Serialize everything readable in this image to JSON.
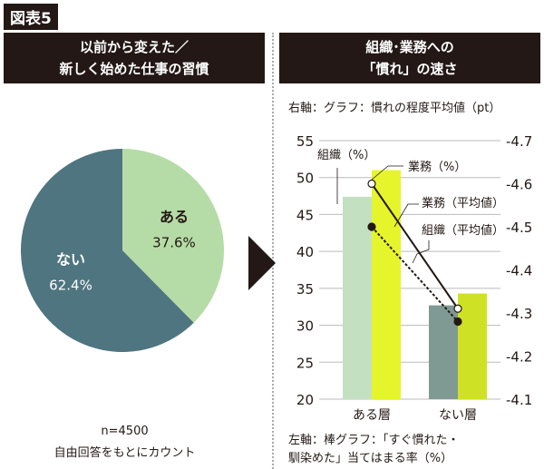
{
  "figure_label": "図表5",
  "left": {
    "title_line1": "以前から変えた／",
    "title_line2": "新しく始めた仕事の習慣",
    "note_n": "n=4500",
    "note_method": "自由回答をもとにカウント"
  },
  "right": {
    "title_line1": "組織･業務への",
    "title_line2": "「慣れ」の速さ",
    "right_axis_note": "右軸：グラフ：慣れの程度平均値（pt）",
    "left_axis_note_line1": "左軸：棒グラフ：「すぐ慣れた・",
    "left_axis_note_line2": "馴染めた」当てはまる率（%）"
  },
  "chart_data": [
    {
      "type": "pie",
      "slices": [
        {
          "label": "ある",
          "value": 37.6,
          "display": "37.6%",
          "color": "#b5dca6"
        },
        {
          "label": "ない",
          "value": 62.4,
          "display": "62.4%",
          "color": "#4e7580"
        }
      ]
    },
    {
      "type": "bar+line",
      "categories": [
        "ある層",
        "ない層"
      ],
      "left_axis": {
        "ylim": [
          20,
          55
        ],
        "ticks": [
          "20",
          "25",
          "30",
          "35",
          "40",
          "45",
          "50",
          "55"
        ]
      },
      "right_axis": {
        "ylim": [
          4.1,
          4.7
        ],
        "ticks": [
          "4.1",
          "4.2",
          "4.3",
          "4.4",
          "4.5",
          "4.6",
          "4.7"
        ]
      },
      "bar_series": [
        {
          "name": "組織（%）",
          "values": [
            47.4,
            32.7
          ],
          "colors": [
            "#c3e1c0",
            "#7f9a93"
          ]
        },
        {
          "name": "業務（%）",
          "values": [
            51.0,
            34.3
          ],
          "colors": [
            "#e6f52b",
            "#cfe124"
          ]
        }
      ],
      "line_series": [
        {
          "name": "業務（平均値）",
          "values": [
            4.6,
            4.31
          ],
          "style": "solid",
          "marker": "open"
        },
        {
          "name": "組織（平均値）",
          "values": [
            4.5,
            4.28
          ],
          "style": "dotted",
          "marker": "filled"
        }
      ],
      "grid": true
    }
  ]
}
